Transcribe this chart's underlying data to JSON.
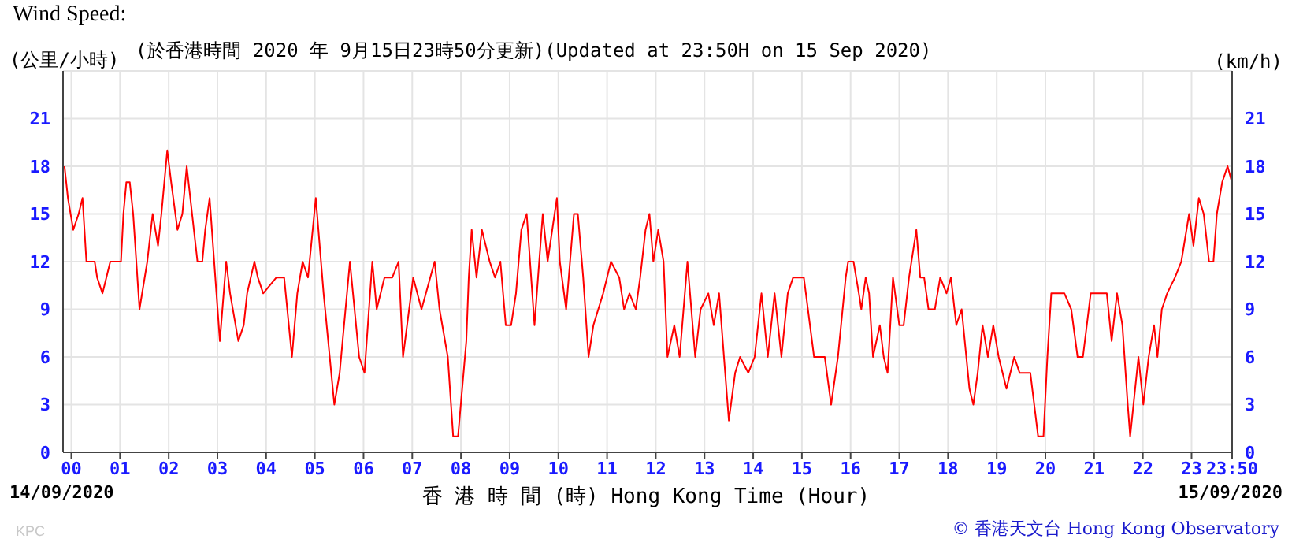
{
  "chart_data": {
    "type": "line",
    "title": "Wind Speed:",
    "subtitle": "(於香港時間 2020 年 9月15日23時50分更新)(Updated at 23:50H on 15 Sep 2020)",
    "ylabel": "(公里/小時)",
    "y2label": "(km/h)",
    "xlabel": "香 港 時 間 (時) Hong Kong Time (Hour)",
    "annotations": [
      "14/09/2020",
      "15/09/2020",
      "© 香港天文台 Hong Kong Observatory",
      "KPC"
    ],
    "x": [
      -0.14,
      -0.07,
      0.04,
      0.15,
      0.23,
      0.31,
      0.48,
      0.53,
      0.64,
      0.72,
      0.8,
      1.02,
      1.07,
      1.13,
      1.2,
      1.27,
      1.4,
      1.56,
      1.67,
      1.78,
      1.85,
      1.94,
      1.97,
      2.05,
      2.18,
      2.28,
      2.37,
      2.48,
      2.59,
      2.69,
      2.75,
      2.84,
      2.91,
      3.05,
      3.18,
      3.26,
      3.43,
      3.54,
      3.61,
      3.76,
      3.83,
      3.94,
      4.21,
      4.37,
      4.53,
      4.64,
      4.75,
      4.86,
      5.02,
      5.18,
      5.4,
      5.51,
      5.72,
      5.91,
      6.02,
      6.18,
      6.27,
      6.43,
      6.59,
      6.72,
      6.81,
      7.02,
      7.19,
      7.46,
      7.56,
      7.73,
      7.84,
      7.94,
      8.11,
      8.16,
      8.22,
      8.32,
      8.43,
      8.59,
      8.7,
      8.81,
      8.92,
      9.03,
      9.13,
      9.24,
      9.35,
      9.51,
      9.68,
      9.78,
      9.97,
      10.03,
      10.16,
      10.32,
      10.4,
      10.51,
      10.62,
      10.72,
      10.92,
      11.08,
      11.25,
      11.35,
      11.46,
      11.59,
      11.68,
      11.79,
      11.87,
      11.95,
      12.05,
      12.16,
      12.24,
      12.38,
      12.49,
      12.65,
      12.81,
      12.92,
      13.08,
      13.19,
      13.3,
      13.5,
      13.63,
      13.73,
      13.9,
      14.03,
      14.17,
      14.3,
      14.44,
      14.58,
      14.71,
      14.82,
      15.04,
      15.25,
      15.47,
      15.6,
      15.74,
      15.9,
      15.95,
      16.06,
      16.17,
      16.22,
      16.31,
      16.38,
      16.46,
      16.6,
      16.68,
      16.76,
      16.87,
      17,
      17.09,
      17.2,
      17.3,
      17.35,
      17.43,
      17.51,
      17.6,
      17.73,
      17.84,
      17.97,
      18.06,
      18.17,
      18.28,
      18.44,
      18.52,
      18.61,
      18.71,
      18.82,
      18.93,
      19.04,
      19.2,
      19.36,
      19.47,
      19.69,
      19.85,
      19.96,
      20.04,
      20.12,
      20.28,
      20.39,
      20.53,
      20.66,
      20.77,
      20.93,
      21.09,
      21.26,
      21.36,
      21.47,
      21.58,
      21.69,
      21.74,
      21.91,
      22.01,
      22.12,
      22.23,
      22.3,
      22.39,
      22.5,
      22.66,
      22.79,
      22.95,
      23.04,
      23.15,
      23.25,
      23.36,
      23.45,
      23.52,
      23.63,
      23.74,
      23.83
    ],
    "series": [
      {
        "color": "#ff0000",
        "values": [
          18,
          16,
          14,
          15,
          16,
          12,
          12,
          11,
          10,
          11,
          12,
          12,
          15,
          17,
          17,
          15,
          9,
          12,
          15,
          13,
          15,
          18,
          19,
          17,
          14,
          15,
          18,
          15,
          12,
          12,
          14,
          16,
          13,
          7,
          12,
          10,
          7,
          8,
          10,
          12,
          11,
          10,
          11,
          11,
          6,
          10,
          12,
          11,
          16,
          10,
          3,
          5,
          12,
          6,
          5,
          12,
          9,
          11,
          11,
          12,
          6,
          11,
          9,
          12,
          9,
          6,
          1,
          1,
          7,
          11,
          14,
          11,
          14,
          12,
          11,
          12,
          8,
          8,
          10,
          14,
          15,
          8,
          15,
          12,
          16,
          12,
          9,
          15,
          15,
          11,
          6,
          8,
          10,
          12,
          11,
          9,
          10,
          9,
          11,
          14,
          15,
          12,
          14,
          12,
          6,
          8,
          6,
          12,
          6,
          9,
          10,
          8,
          10,
          2,
          5,
          6,
          5,
          6,
          10,
          6,
          10,
          6,
          10,
          11,
          11,
          6,
          6,
          3,
          6,
          11,
          12,
          12,
          10,
          9,
          11,
          10,
          6,
          8,
          6,
          5,
          11,
          8,
          8,
          11,
          13,
          14,
          11,
          11,
          9,
          9,
          11,
          10,
          11,
          8,
          9,
          4,
          3,
          5,
          8,
          6,
          8,
          6,
          4,
          6,
          5,
          5,
          1,
          1,
          6,
          10,
          10,
          10,
          9,
          6,
          6,
          10,
          10,
          10,
          7,
          10,
          8,
          3,
          1,
          6,
          3,
          6,
          8,
          6,
          9,
          10,
          11,
          12,
          15,
          13,
          16,
          15,
          12,
          12,
          15,
          17,
          18,
          17
        ]
      }
    ],
    "xlim": [
      -0.17,
      23.8333
    ],
    "xticks": [
      {
        "value": 0,
        "label": "00"
      },
      {
        "value": 1,
        "label": "01"
      },
      {
        "value": 2,
        "label": "02"
      },
      {
        "value": 3,
        "label": "03"
      },
      {
        "value": 4,
        "label": "04"
      },
      {
        "value": 5,
        "label": "05"
      },
      {
        "value": 6,
        "label": "06"
      },
      {
        "value": 7,
        "label": "07"
      },
      {
        "value": 8,
        "label": "08"
      },
      {
        "value": 9,
        "label": "09"
      },
      {
        "value": 10,
        "label": "10"
      },
      {
        "value": 11,
        "label": "11"
      },
      {
        "value": 12,
        "label": "12"
      },
      {
        "value": 13,
        "label": "13"
      },
      {
        "value": 14,
        "label": "14"
      },
      {
        "value": 15,
        "label": "15"
      },
      {
        "value": 16,
        "label": "16"
      },
      {
        "value": 17,
        "label": "17"
      },
      {
        "value": 18,
        "label": "18"
      },
      {
        "value": 19,
        "label": "19"
      },
      {
        "value": 20,
        "label": "20"
      },
      {
        "value": 21,
        "label": "21"
      },
      {
        "value": 22,
        "label": "22"
      },
      {
        "value": 23,
        "label": "23"
      },
      {
        "value": 23.8333,
        "label": "23:50"
      }
    ],
    "ylim": [
      0,
      24
    ],
    "yticks": [
      0,
      3,
      6,
      9,
      12,
      15,
      18,
      21
    ],
    "y2lim": [
      0,
      24
    ],
    "y2ticks": [
      0,
      3,
      6,
      9,
      12,
      15,
      18,
      21
    ],
    "grid": true,
    "legend": false,
    "marker": "none",
    "line_style": "solid"
  }
}
